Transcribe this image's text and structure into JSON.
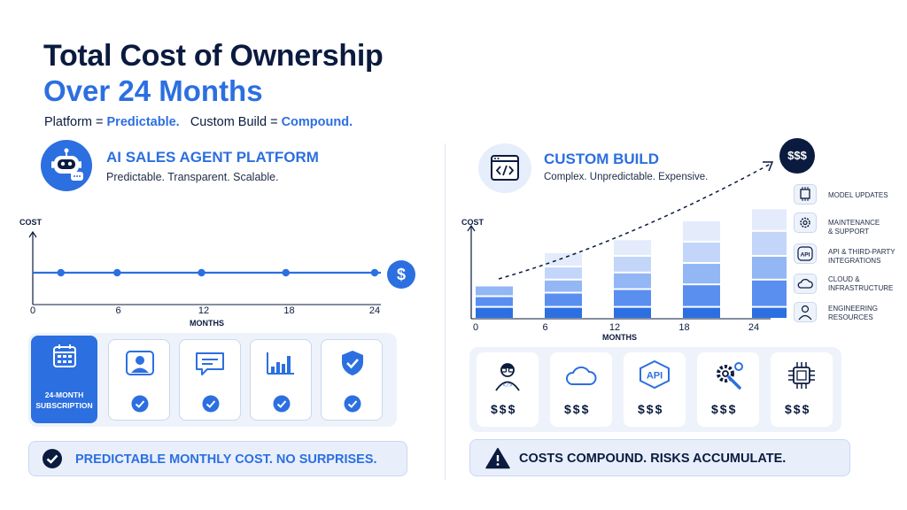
{
  "header": {
    "title_line1": "Total Cost of Ownership",
    "title_line2": "Over 24 Months",
    "tag_platform": "Platform = ",
    "tag_platform_value": "Predictable.",
    "tag_custom": "Custom Build = ",
    "tag_custom_value": "Compound."
  },
  "left": {
    "heading": "AI SALES AGENT PLATFORM",
    "subheading": "Predictable. Transparent. Scalable.",
    "badge_symbol": "$",
    "subscription_label": "24-MONTH SUBSCRIPTION",
    "feature_icons": [
      "user-icon",
      "chat-icon",
      "bar-chart-icon",
      "shield-check-icon"
    ],
    "banner": "PREDICTABLE MONTHLY COST. NO SURPRISES."
  },
  "right": {
    "heading": "CUSTOM BUILD",
    "subheading": "Complex. Unpredictable. Expensive.",
    "badge_symbol": "$$$",
    "cost_cards": [
      {
        "icon": "engineer-icon",
        "label": "$$$"
      },
      {
        "icon": "cloud-icon",
        "label": "$$$"
      },
      {
        "icon": "api-icon",
        "label": "$$$"
      },
      {
        "icon": "gear-wrench-icon",
        "label": "$$$"
      },
      {
        "icon": "chip-icon",
        "label": "$$$"
      }
    ],
    "legend": [
      {
        "icon": "chip-icon",
        "line1": "MODEL UPDATES",
        "line2": ""
      },
      {
        "icon": "gear-icon",
        "line1": "MAINTENANCE",
        "line2": "& SUPPORT"
      },
      {
        "icon": "api-icon",
        "line1": "API & THIRD-PARTY",
        "line2": "INTEGRATIONS"
      },
      {
        "icon": "cloud-icon",
        "line1": "CLOUD &",
        "line2": "INFRASTRUCTURE"
      },
      {
        "icon": "engineer-icon",
        "line1": "ENGINEERING",
        "line2": "RESOURCES"
      }
    ],
    "banner": "COSTS COMPOUND. RISKS ACCUMULATE."
  },
  "colors": {
    "primary": "#2c6fe0",
    "navy": "#0b1b3f",
    "light_panel": "#eef3fb",
    "segment_shades": [
      "#2c6fe0",
      "#5a8ff0",
      "#93b6f5",
      "#c3d6fa",
      "#e4ecfc"
    ]
  },
  "chart_data": [
    {
      "type": "line",
      "ylabel": "COST",
      "xlabel": "MONTHS",
      "x_ticks": [
        "0",
        "6",
        "12",
        "18",
        "24"
      ],
      "series": [
        {
          "x": [
            2,
            6,
            12,
            18,
            24
          ],
          "y": [
            1,
            1,
            1,
            1,
            1
          ]
        }
      ]
    },
    {
      "type": "bar",
      "stacked": true,
      "ylabel": "COST",
      "xlabel": "MONTHS",
      "categories": [
        "0",
        "6",
        "12",
        "18",
        "24"
      ],
      "series": [
        {
          "name": "ENGINEERING RESOURCES",
          "values": [
            1.0,
            1.0,
            1.0,
            1.0,
            1.0
          ]
        },
        {
          "name": "CLOUD & INFRASTRUCTURE",
          "values": [
            0.9,
            1.2,
            1.5,
            1.9,
            2.3
          ]
        },
        {
          "name": "API & THIRD-PARTY INTEGRATIONS",
          "values": [
            0.9,
            1.1,
            1.4,
            1.8,
            2.0
          ]
        },
        {
          "name": "MAINTENANCE & SUPPORT",
          "values": [
            0,
            1.1,
            1.4,
            1.8,
            2.1
          ]
        },
        {
          "name": "MODEL UPDATES",
          "values": [
            0,
            1.2,
            1.4,
            1.8,
            1.9
          ]
        }
      ],
      "trend": "rising"
    }
  ]
}
